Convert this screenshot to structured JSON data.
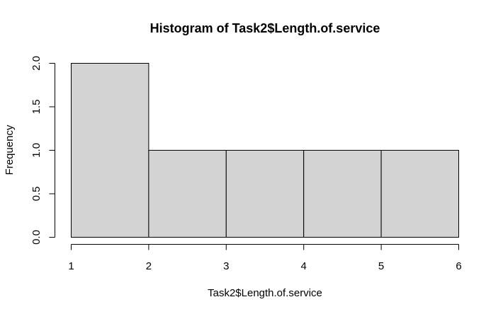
{
  "chart_data": {
    "type": "bar",
    "subtype": "histogram",
    "title": "Histogram of Task2$Length.of.service",
    "xlabel": "Task2$Length.of.service",
    "ylabel": "Frequency",
    "bins": [
      {
        "x0": 1,
        "x1": 2,
        "count": 2
      },
      {
        "x0": 2,
        "x1": 3,
        "count": 1
      },
      {
        "x0": 3,
        "x1": 4,
        "count": 1
      },
      {
        "x0": 4,
        "x1": 5,
        "count": 1
      },
      {
        "x0": 5,
        "x1": 6,
        "count": 1
      }
    ],
    "xlim": [
      1,
      6
    ],
    "ylim": [
      0,
      2
    ],
    "xticks": [
      "1",
      "2",
      "3",
      "4",
      "5",
      "6"
    ],
    "yticks": [
      "0.0",
      "0.5",
      "1.0",
      "1.5",
      "2.0"
    ],
    "grid": false,
    "bar_color": "#d3d3d3",
    "edge_color": "#000000"
  }
}
